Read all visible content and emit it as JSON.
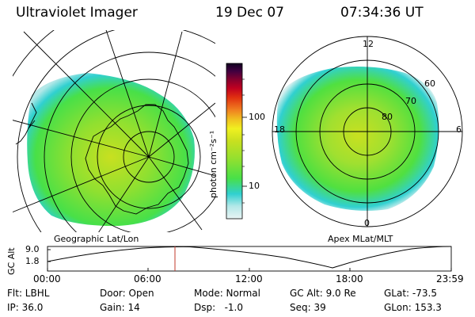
{
  "header": {
    "instrument": "Ultraviolet Imager",
    "date": "19 Dec 07",
    "time": "07:34:36 UT"
  },
  "geo_panel": {
    "caption": "Geographic Lat/Lon"
  },
  "polar_panel": {
    "caption": "Apex MLat/MLT",
    "mlt_labels": {
      "top": "12",
      "right": "6",
      "bottom": "0",
      "left": "18"
    },
    "mlat_labels": [
      "60",
      "70",
      "80"
    ]
  },
  "colorbar": {
    "unit_label": "photon cm⁻²s⁻¹",
    "tick_labels": [
      "100",
      "10"
    ],
    "scale": "log",
    "colors": [
      "#e8f4f4",
      "#b4e8e8",
      "#30d0d0",
      "#48e048",
      "#90e030",
      "#c8e020",
      "#f0f020",
      "#f0c020",
      "#f08020",
      "#e03010",
      "#c00020",
      "#800030",
      "#400040",
      "#100020"
    ]
  },
  "altitude_strip": {
    "ylabel": "GC Alt",
    "y_ticks": [
      "9.0",
      "1.8"
    ],
    "x_ticks": [
      "00:00",
      "06:00",
      "12:00",
      "18:00",
      "23:59"
    ],
    "current_time_marker": "07:34",
    "marker_color": "#c0392b"
  },
  "status": {
    "rows": [
      [
        {
          "key": "flt",
          "text": "Flt: LBHL"
        },
        {
          "key": "door",
          "text": "Door: Open"
        },
        {
          "key": "mode",
          "text": "Mode: Normal"
        },
        {
          "key": "gcalt",
          "text": "GC Alt: 9.0 Re"
        },
        {
          "key": "glat",
          "text": "GLat: -73.5"
        }
      ],
      [
        {
          "key": "ip",
          "text": "IP: 36.0"
        },
        {
          "key": "gain",
          "text": "Gain: 14"
        },
        {
          "key": "dsp",
          "text": "Dsp:   -1.0"
        },
        {
          "key": "seq",
          "text": "Seq: 39"
        },
        {
          "key": "glon",
          "text": "GLon: 153.3"
        }
      ]
    ]
  }
}
